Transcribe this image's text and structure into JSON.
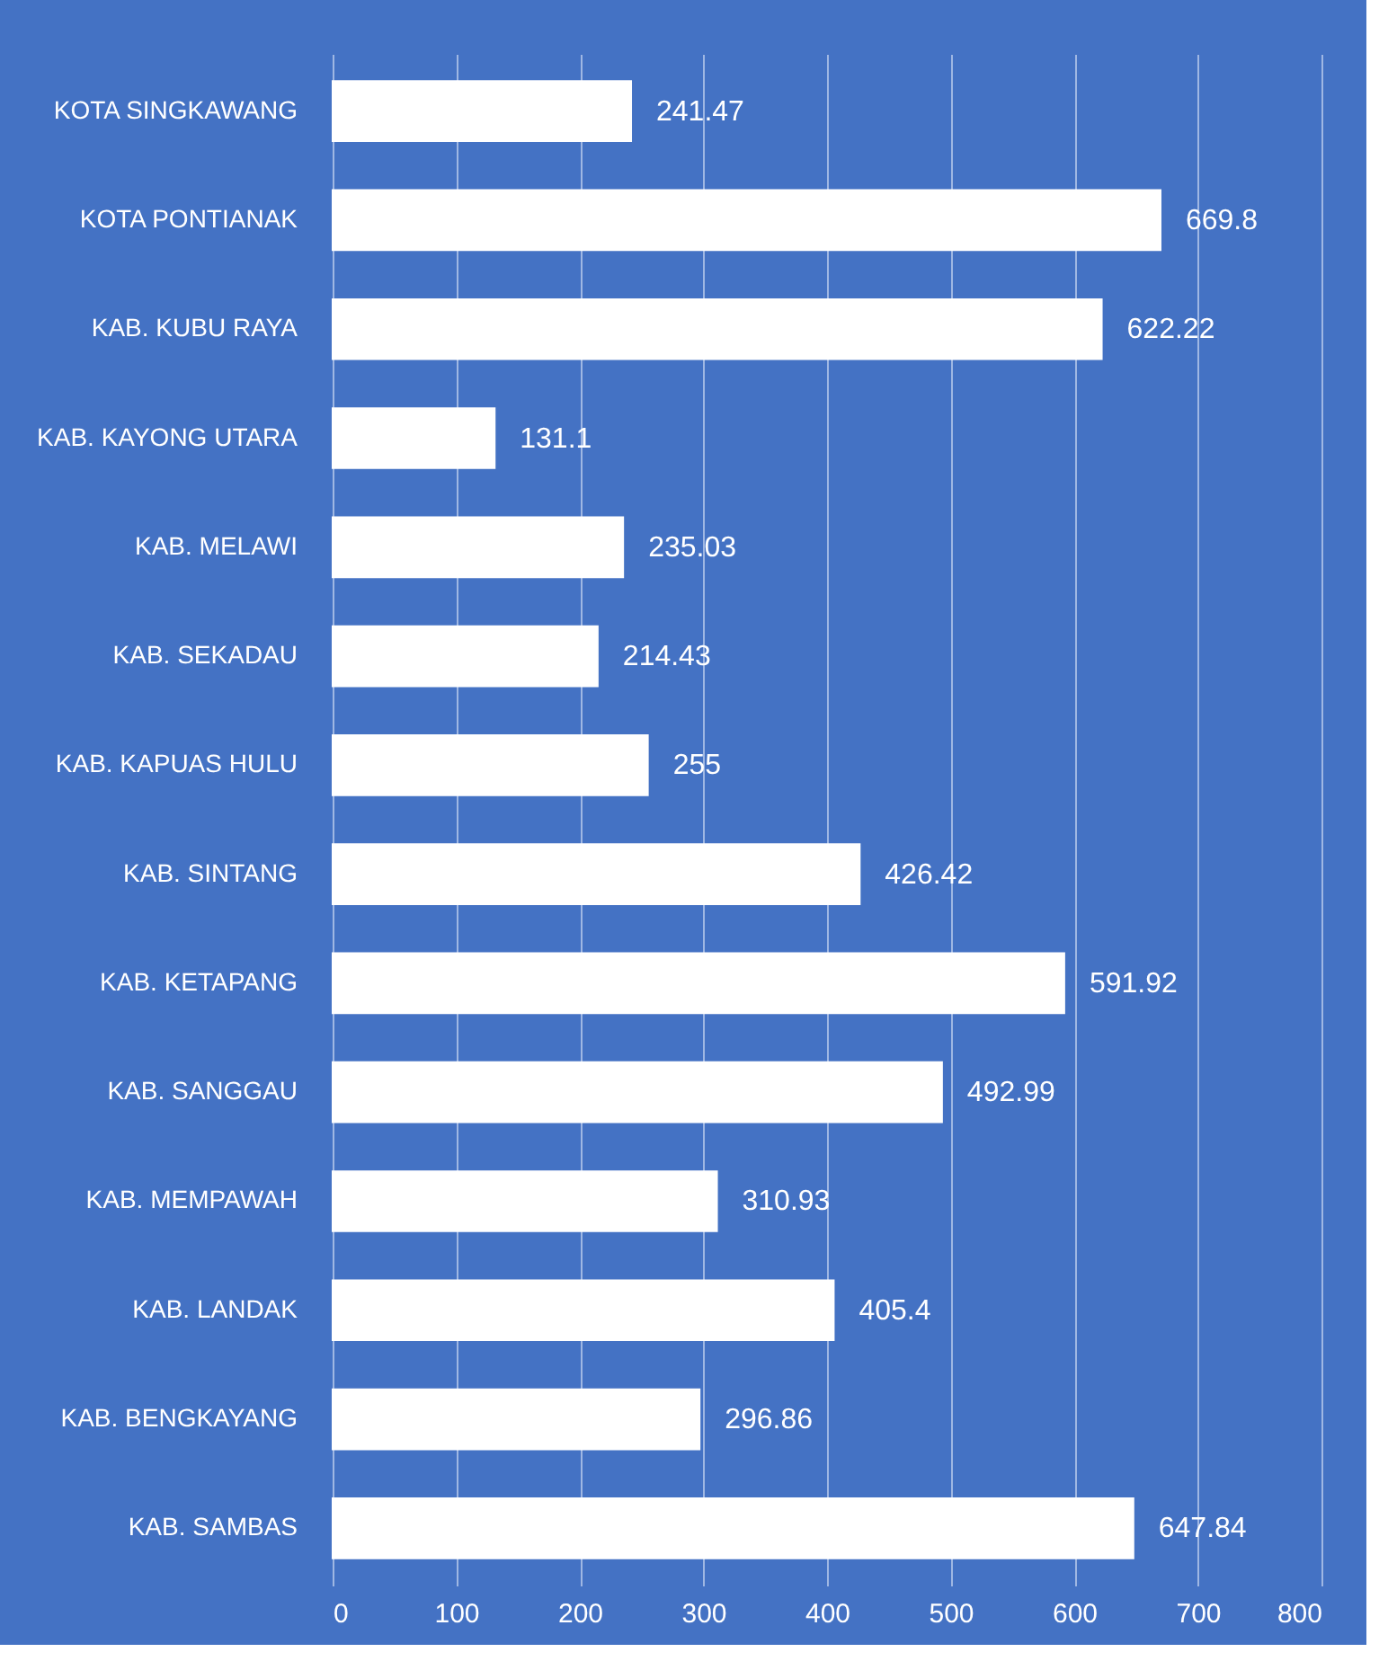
{
  "chart_data": {
    "type": "bar",
    "orientation": "horizontal",
    "categories": [
      "KOTA SINGKAWANG",
      "KOTA PONTIANAK",
      "KAB. KUBU RAYA",
      "KAB. KAYONG UTARA",
      "KAB. MELAWI",
      "KAB. SEKADAU",
      "KAB. KAPUAS HULU",
      "KAB. SINTANG",
      "KAB. KETAPANG",
      "KAB. SANGGAU",
      "KAB. MEMPAWAH",
      "KAB. LANDAK",
      "KAB. BENGKAYANG",
      "KAB. SAMBAS"
    ],
    "values": [
      241.47,
      669.8,
      622.22,
      131.1,
      235.03,
      214.43,
      255,
      426.42,
      591.92,
      492.99,
      310.93,
      405.4,
      296.86,
      647.84
    ],
    "color": "#ffffff",
    "xlim": [
      0,
      800
    ],
    "xticks": [
      0,
      100,
      200,
      300,
      400,
      500,
      600,
      700,
      800
    ],
    "grid": "x",
    "data_labels": true
  }
}
